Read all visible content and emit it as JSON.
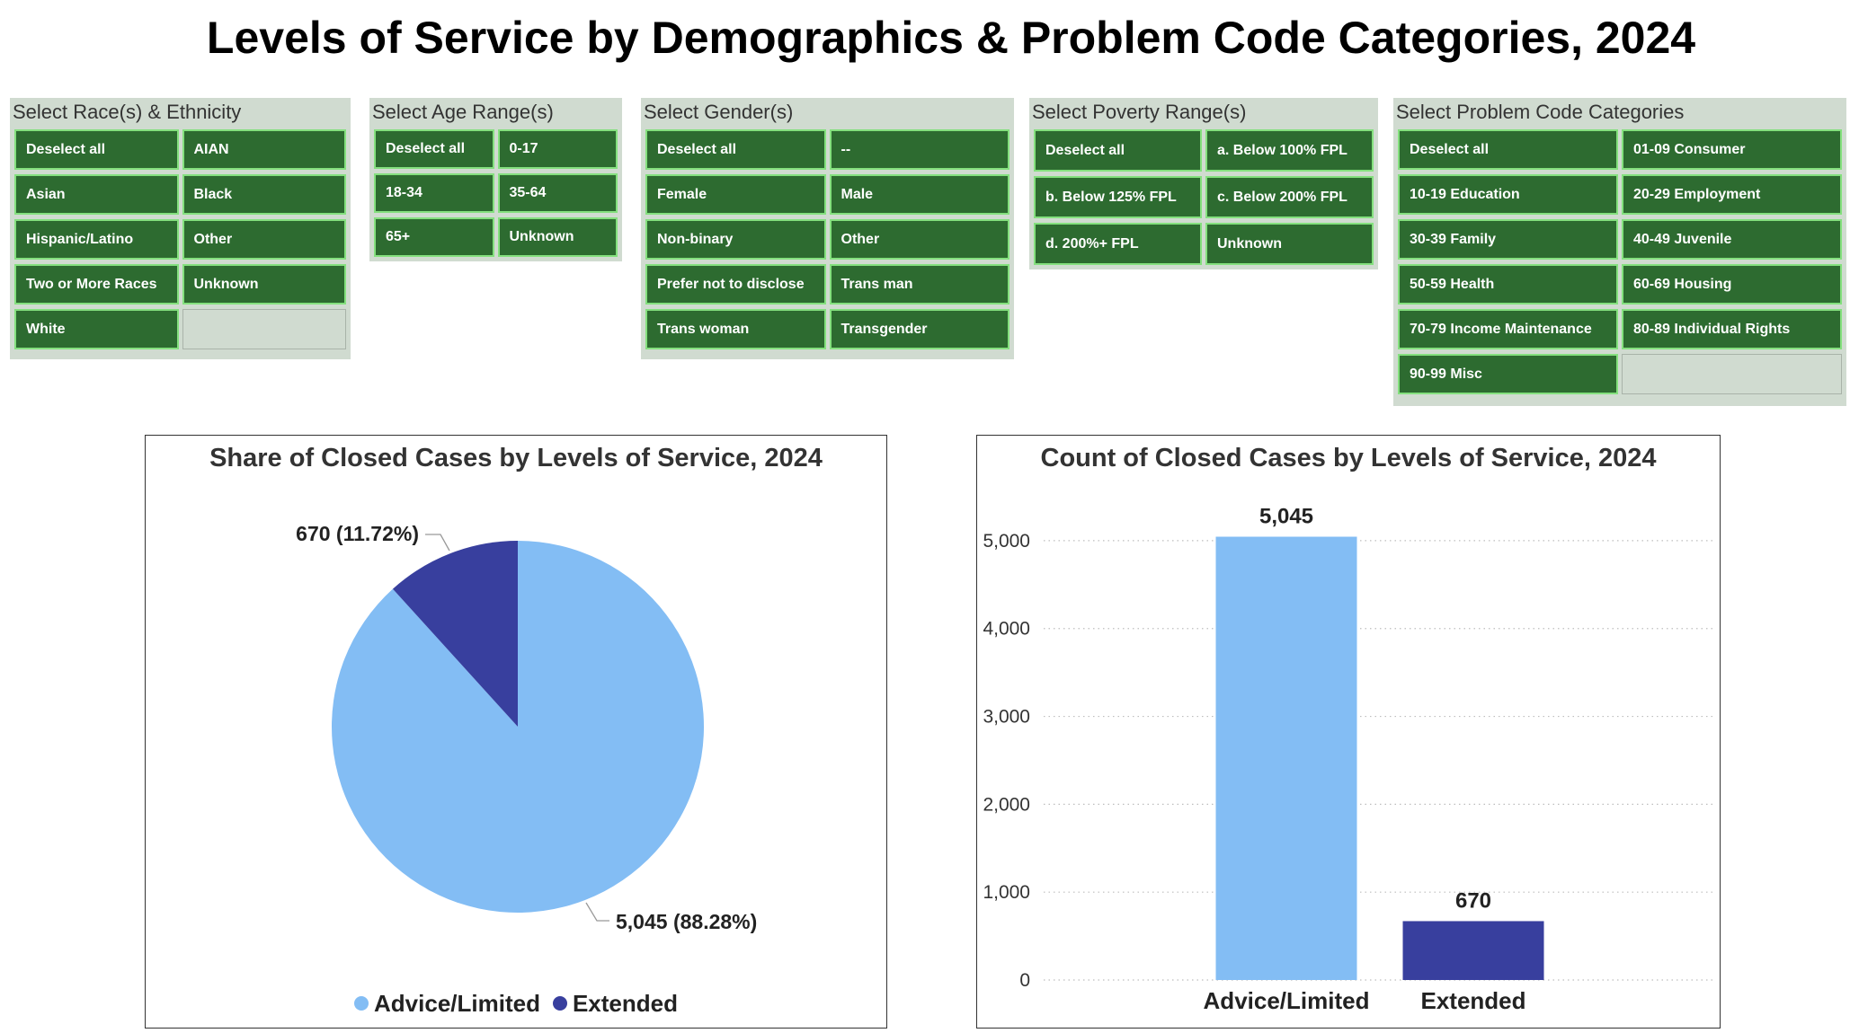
{
  "page": {
    "title": "Levels of Service by Demographics & Problem Code Categories, 2024"
  },
  "theme": {
    "button_fill": "#2d6b30",
    "button_border": "#84e07e",
    "panel_fill": "#d0dbd0",
    "title_text": "#000000"
  },
  "slicers": [
    {
      "header": "Select Race(s) & Ethnicity",
      "options": [
        "Deselect all",
        "AIAN",
        "Asian",
        "Black",
        "Hispanic/Latino",
        "Other",
        "Two or More Races",
        "Unknown",
        "White"
      ]
    },
    {
      "header": "Select Age Range(s)",
      "options": [
        "Deselect all",
        "0-17",
        "18-34",
        "35-64",
        "65+",
        "Unknown"
      ]
    },
    {
      "header": "Select Gender(s)",
      "options": [
        "Deselect all",
        "--",
        "Female",
        "Male",
        "Non-binary",
        "Other",
        "Prefer not to disclose",
        "Trans man",
        "Trans woman",
        "Transgender"
      ]
    },
    {
      "header": "Select Poverty Range(s)",
      "options": [
        "Deselect all",
        "a. Below 100% FPL",
        "b. Below 125% FPL",
        "c. Below 200% FPL",
        "d. 200%+ FPL",
        "Unknown"
      ]
    },
    {
      "header": "Select Problem Code Categories",
      "options": [
        "Deselect all",
        "01-09 Consumer",
        "10-19 Education",
        "20-29 Employment",
        "30-39 Family",
        "40-49 Juvenile",
        "50-59 Health",
        "60-69 Housing",
        "70-79 Income Maintenance",
        "80-89 Individual Rights",
        "90-99 Misc"
      ]
    }
  ],
  "chart_data": [
    {
      "type": "pie",
      "title": "Share of Closed Cases by Levels of Service, 2024",
      "categories": [
        "Advice/Limited",
        "Extended"
      ],
      "values": [
        5045,
        670
      ],
      "percentages": [
        88.28,
        11.72
      ],
      "data_labels": [
        "5,045 (88.28%)",
        "670 (11.72%)"
      ],
      "colors": [
        "#83bdf4",
        "#383f9e"
      ]
    },
    {
      "type": "bar",
      "title": "Count of Closed Cases by Levels of Service, 2024",
      "categories": [
        "Advice/Limited",
        "Extended"
      ],
      "values": [
        5045,
        670
      ],
      "value_labels": [
        "5,045",
        "670"
      ],
      "colors": [
        "#83bdf4",
        "#383f9e"
      ],
      "xlabel": "",
      "ylabel": "",
      "ylim": [
        0,
        5500
      ],
      "y_ticks": [
        0,
        1000,
        2000,
        3000,
        4000,
        5000
      ],
      "y_tick_labels": [
        "0",
        "1,000",
        "2,000",
        "3,000",
        "4,000",
        "5,000"
      ],
      "grid": true
    }
  ]
}
